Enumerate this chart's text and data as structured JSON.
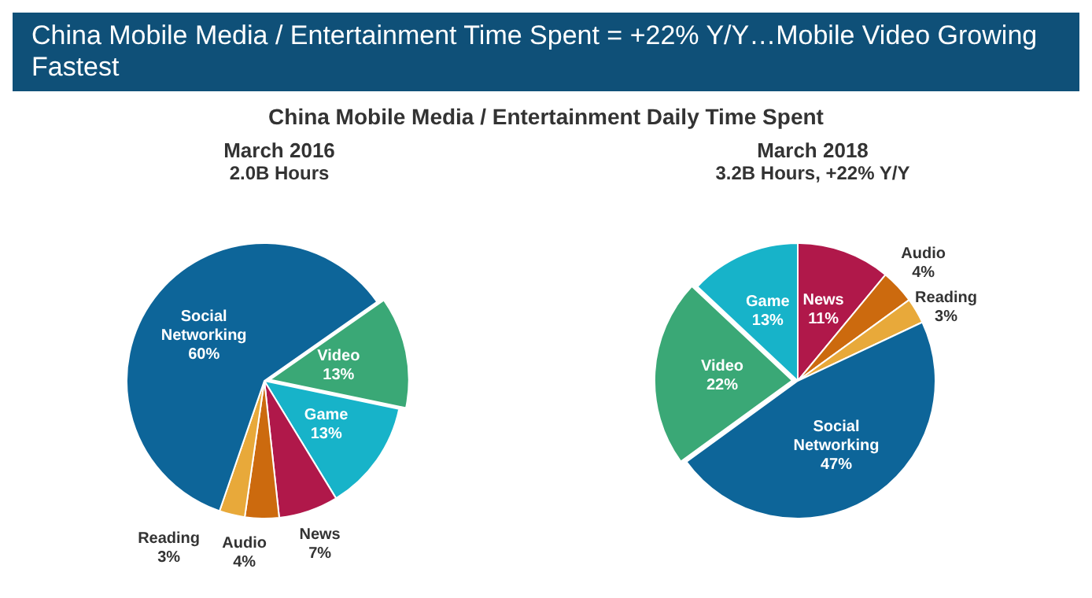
{
  "chart_data": [
    {
      "type": "pie",
      "title": "March 2016",
      "subtitle": "2.0B Hours",
      "annotations": [
        "China Mobile Media / Entertainment Time Spent = +22% Y/Y…Mobile Video Growing Fastest",
        "China Mobile Media / Entertainment Daily Time Spent"
      ],
      "categories": [
        "Video",
        "Game",
        "News",
        "Audio",
        "Reading",
        "Social Networking"
      ],
      "values": [
        13,
        13,
        7,
        4,
        3,
        60
      ],
      "value_labels": [
        "13%",
        "13%",
        "7%",
        "4%",
        "3%",
        "60%"
      ],
      "colors": [
        "#3aa876",
        "#17b3c9",
        "#b0184a",
        "#cc6a0e",
        "#e8a93a",
        "#0d6599"
      ]
    },
    {
      "type": "pie",
      "title": "March 2018",
      "subtitle": "3.2B Hours, +22% Y/Y",
      "categories": [
        "News",
        "Audio",
        "Reading",
        "Social Networking",
        "Video",
        "Game"
      ],
      "values": [
        11,
        4,
        3,
        47,
        22,
        13
      ],
      "value_labels": [
        "11%",
        "4%",
        "3%",
        "47%",
        "22%",
        "13%"
      ],
      "colors": [
        "#b0184a",
        "#cc6a0e",
        "#e8a93a",
        "#0d6599",
        "#3aa876",
        "#17b3c9"
      ]
    }
  ]
}
